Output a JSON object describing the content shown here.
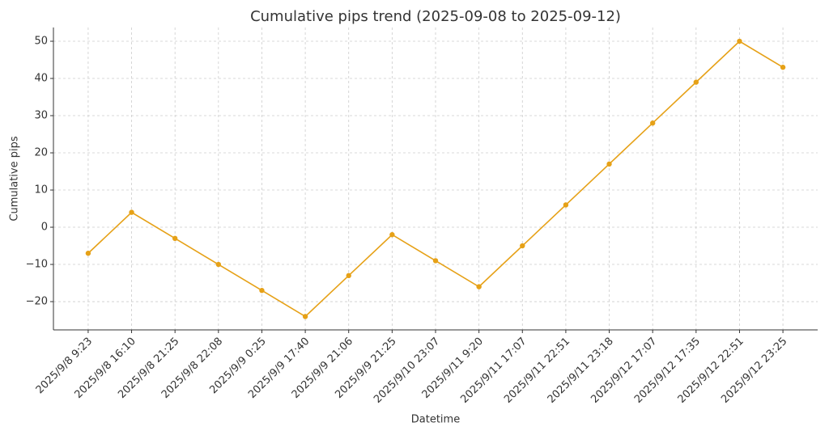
{
  "chart_data": {
    "type": "line",
    "title": "Cumulative pips trend (2025-09-08 to 2025-09-12)",
    "x_label": "Datetime",
    "y_label": "Cumulative pips",
    "categories": [
      "2025/9/8 9:23",
      "2025/9/8 16:10",
      "2025/9/8 21:25",
      "2025/9/8 22:08",
      "2025/9/9 0:25",
      "2025/9/9 17:40",
      "2025/9/9 21:06",
      "2025/9/9 21:25",
      "2025/9/10 23:07",
      "2025/9/11 9:20",
      "2025/9/11 17:07",
      "2025/9/11 22:51",
      "2025/9/11 23:18",
      "2025/9/12 17:07",
      "2025/9/12 17:35",
      "2025/9/12 22:51",
      "2025/9/12 23:25"
    ],
    "values": [
      -7,
      4,
      -3,
      -10,
      -17,
      -24,
      -13,
      -2,
      -9,
      -16,
      -5,
      6,
      17,
      28,
      39,
      50,
      43
    ],
    "color": "#e6a117",
    "ylim": [
      -27.6,
      53.7
    ],
    "yticks": [
      {
        "value": -20,
        "label": "−20"
      },
      {
        "value": -10,
        "label": "−10"
      },
      0,
      10,
      20,
      30,
      40,
      50
    ],
    "grid": true
  }
}
